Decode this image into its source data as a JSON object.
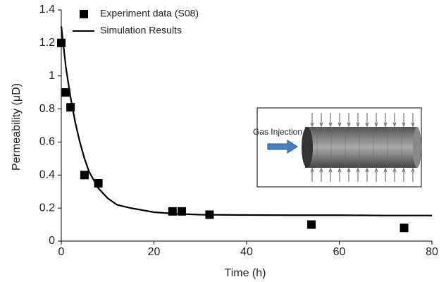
{
  "chart_data": {
    "type": "scatter",
    "xlabel": "Time (h)",
    "ylabel": "Permeability (μD)",
    "xlim": [
      0,
      80
    ],
    "xticks": [
      0,
      20,
      40,
      60,
      80
    ],
    "ylim": [
      0,
      1.4
    ],
    "yticks": [
      0,
      0.2,
      0.4,
      0.6,
      0.8,
      1,
      1.2,
      1.4
    ],
    "legend": "upper-left",
    "inset_label": "Gas Injection",
    "series": [
      {
        "name": "Experiment data (S08)",
        "type": "scatter",
        "color": "#000000",
        "x": [
          0,
          1,
          2,
          5,
          8,
          24,
          26,
          32,
          54,
          74
        ],
        "values": [
          1.2,
          0.9,
          0.81,
          0.4,
          0.35,
          0.18,
          0.18,
          0.16,
          0.1,
          0.08
        ]
      },
      {
        "name": "Simulation Results",
        "type": "line",
        "color": "#000000",
        "x": [
          0,
          1,
          2,
          3,
          4,
          5,
          6,
          8,
          10,
          12,
          15,
          20,
          25,
          30,
          40,
          50,
          60,
          70,
          80
        ],
        "values": [
          1.3,
          1.05,
          0.87,
          0.72,
          0.6,
          0.5,
          0.42,
          0.32,
          0.26,
          0.22,
          0.2,
          0.175,
          0.165,
          0.16,
          0.158,
          0.157,
          0.157,
          0.155,
          0.155
        ]
      }
    ]
  }
}
